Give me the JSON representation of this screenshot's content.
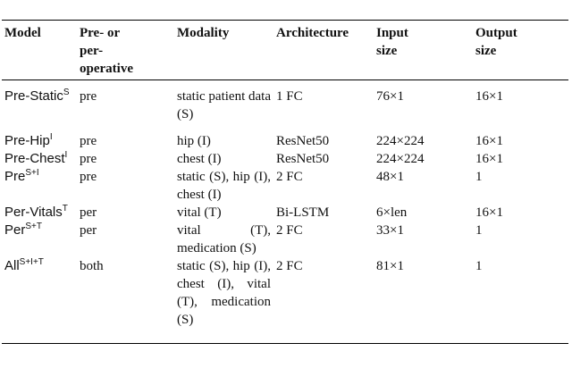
{
  "table": {
    "headers": [
      "Model",
      "Pre- or per- operative",
      "Modality",
      "Architecture",
      "Input size",
      "Output size"
    ],
    "rows": [
      {
        "model": "Pre-Static",
        "sup": "S",
        "phase": "pre",
        "modality": "static patient data (S)",
        "architecture": "1 FC",
        "input_size": "76×1",
        "output_size": "16×1"
      },
      {
        "model": "Pre-Hip",
        "sup": "I",
        "phase": "pre",
        "modality": "hip (I)",
        "architecture": "ResNet50",
        "input_size": "224×224",
        "output_size": "16×1"
      },
      {
        "model": "Pre-Chest",
        "sup": "I",
        "phase": "pre",
        "modality": "chest (I)",
        "architecture": "ResNet50",
        "input_size": "224×224",
        "output_size": "16×1"
      },
      {
        "model": "Pre",
        "sup": "S+I",
        "phase": "pre",
        "modality": "static (S), hip (I), chest (I)",
        "architecture": "2 FC",
        "input_size": "48×1",
        "output_size": "1"
      },
      {
        "model": "Per-Vitals",
        "sup": "T",
        "phase": "per",
        "modality": "vital (T)",
        "architecture": "Bi-LSTM",
        "input_size": "6×len",
        "output_size": "16×1"
      },
      {
        "model": "Per",
        "sup": "S+T",
        "phase": "per",
        "modality": "vital (T), medication (S)",
        "architecture": "2 FC",
        "input_size": "33×1",
        "output_size": "1"
      },
      {
        "model": "All",
        "sup": "S+I+T",
        "phase": "both",
        "modality": "static (S), hip (I), chest (I), vital (T), medication (S)",
        "architecture": "2 FC",
        "input_size": "81×1",
        "output_size": "1"
      }
    ]
  }
}
